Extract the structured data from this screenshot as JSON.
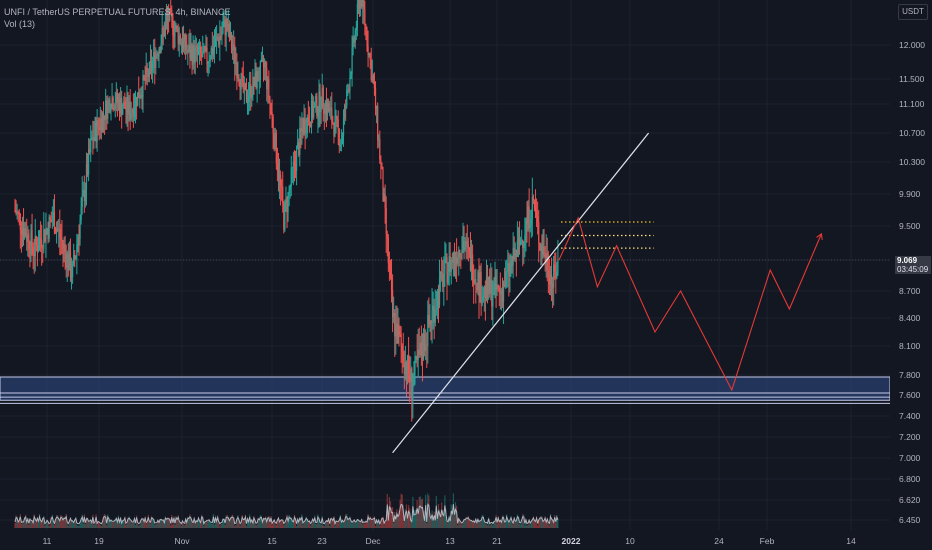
{
  "legend": {
    "symbol_line": "UNFI / TetherUS PERPETUAL FUTURES, 4h, BINANCE",
    "volume_line": "Vol (13)"
  },
  "currency_button": "USDT",
  "price_label": {
    "price": "9.069",
    "countdown": "03:45:09"
  },
  "colors": {
    "background": "#131722",
    "up": "#26a69a",
    "down": "#ef5350",
    "grid": "#1e222d",
    "projection": "#e53935",
    "trendline": "#e0e3eb",
    "zone_fill": "#2a3f6e",
    "zone_line": "#c5cae9",
    "resistance_dots": "#f0c419",
    "support_dots": "#ffe082"
  },
  "chart_data": {
    "type": "candlestick",
    "title": "UNFI / TetherUS PERPETUAL FUTURES, 4h, BINANCE",
    "y_ticks": [
      "12.000",
      "11.500",
      "11.100",
      "10.700",
      "10.300",
      "9.900",
      "9.500",
      "9.069",
      "8.700",
      "8.400",
      "8.100",
      "7.800",
      "7.600",
      "7.400",
      "7.200",
      "7.000",
      "6.800",
      "6.620",
      "6.450"
    ],
    "x_ticks": [
      {
        "label": "11",
        "bold": false
      },
      {
        "label": "19",
        "bold": false
      },
      {
        "label": "Nov",
        "bold": false
      },
      {
        "label": "15",
        "bold": false
      },
      {
        "label": "23",
        "bold": false
      },
      {
        "label": "Dec",
        "bold": false
      },
      {
        "label": "13",
        "bold": false
      },
      {
        "label": "21",
        "bold": false
      },
      {
        "label": "2022",
        "bold": true
      },
      {
        "label": "10",
        "bold": false
      },
      {
        "label": "24",
        "bold": false
      },
      {
        "label": "Feb",
        "bold": false
      },
      {
        "label": "14",
        "bold": false
      }
    ],
    "price_path": [
      [
        "Oct 06",
        9.7
      ],
      [
        "Oct 09",
        9.2
      ],
      [
        "Oct 12",
        9.6
      ],
      [
        "Oct 15",
        8.9
      ],
      [
        "Oct 18",
        10.6
      ],
      [
        "Oct 21",
        11.2
      ],
      [
        "Oct 24",
        11.0
      ],
      [
        "Oct 27",
        11.6
      ],
      [
        "Oct 30",
        12.4
      ],
      [
        "Nov 02",
        11.9
      ],
      [
        "Nov 05",
        11.8
      ],
      [
        "Nov 08",
        12.3
      ],
      [
        "Nov 11",
        11.2
      ],
      [
        "Nov 14",
        11.7
      ],
      [
        "Nov 17",
        9.6
      ],
      [
        "Nov 20",
        10.8
      ],
      [
        "Nov 23",
        11.2
      ],
      [
        "Nov 26",
        10.6
      ],
      [
        "Nov 29",
        12.8
      ],
      [
        "Dec 01",
        11.4
      ],
      [
        "Dec 04",
        8.4
      ],
      [
        "Dec 07",
        7.7
      ],
      [
        "Dec 10",
        8.4
      ],
      [
        "Dec 12",
        8.9
      ],
      [
        "Dec 15",
        9.3
      ],
      [
        "Dec 18",
        8.7
      ],
      [
        "Dec 21",
        8.7
      ],
      [
        "Dec 24",
        9.3
      ],
      [
        "Dec 26",
        9.8
      ],
      [
        "Dec 27",
        9.3
      ],
      [
        "Dec 28",
        9.1
      ],
      [
        "Dec 29",
        8.8
      ],
      [
        "Dec 30",
        9.069
      ]
    ],
    "projection": [
      [
        "Dec 30",
        9.069
      ],
      [
        "Jan 02",
        9.6
      ],
      [
        "Jan 05",
        8.75
      ],
      [
        "Jan 08",
        9.25
      ],
      [
        "Jan 14",
        8.25
      ],
      [
        "Jan 18",
        8.7
      ],
      [
        "Jan 26",
        7.65
      ],
      [
        "Feb 01",
        8.95
      ],
      [
        "Feb 04",
        8.5
      ],
      [
        "Feb 09",
        9.4
      ]
    ],
    "trendline": [
      [
        "Dec 04",
        7.05
      ],
      [
        "Jan 13",
        10.7
      ]
    ],
    "horizontal_levels": [
      {
        "price": 9.55,
        "style": "dotted",
        "color_key": "resistance_dots"
      },
      {
        "price": 9.38,
        "style": "dotted",
        "color_key": "support_dots"
      },
      {
        "price": 9.22,
        "style": "dotted",
        "color_key": "support_dots"
      }
    ],
    "zone": [
      7.55,
      7.78
    ],
    "zone_lines": [
      7.62,
      7.58,
      7.52
    ],
    "last_price": 9.069,
    "grid": true,
    "volume_panel": true
  }
}
